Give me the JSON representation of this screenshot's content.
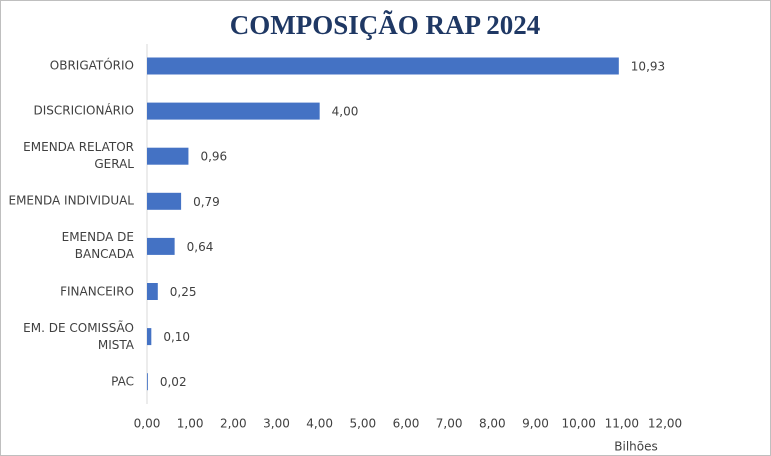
{
  "chart_data": {
    "type": "bar",
    "orientation": "horizontal",
    "title": "COMPOSIÇÃO RAP 2024",
    "categories": [
      "OBRIGATÓRIO",
      "DISCRICIONÁRIO",
      "EMENDA RELATOR\nGERAL",
      "EMENDA INDIVIDUAL",
      "EMENDA DE\nBANCADA",
      "FINANCEIRO",
      "EM. DE COMISSÃO\nMISTA",
      "PAC"
    ],
    "values": [
      10.93,
      4.0,
      0.96,
      0.79,
      0.64,
      0.25,
      0.1,
      0.02
    ],
    "value_labels": [
      "10,93",
      "4,00",
      "0,96",
      "0,79",
      "0,64",
      "0,25",
      "0,10",
      "0,02"
    ],
    "color": "#4472c4",
    "xlim": [
      0,
      12
    ],
    "xticks": [
      {
        "value": 0,
        "label": "0,00"
      },
      {
        "value": 1,
        "label": "1,00"
      },
      {
        "value": 2,
        "label": "2,00"
      },
      {
        "value": 3,
        "label": "3,00"
      },
      {
        "value": 4,
        "label": "4,00"
      },
      {
        "value": 5,
        "label": "5,00"
      },
      {
        "value": 6,
        "label": "6,00"
      },
      {
        "value": 7,
        "label": "7,00"
      },
      {
        "value": 8,
        "label": "8,00"
      },
      {
        "value": 9,
        "label": "9,00"
      },
      {
        "value": 10,
        "label": "10,00"
      },
      {
        "value": 11,
        "label": "11,00"
      },
      {
        "value": 12,
        "label": "12,00"
      }
    ],
    "x_label": "Bilhões"
  }
}
